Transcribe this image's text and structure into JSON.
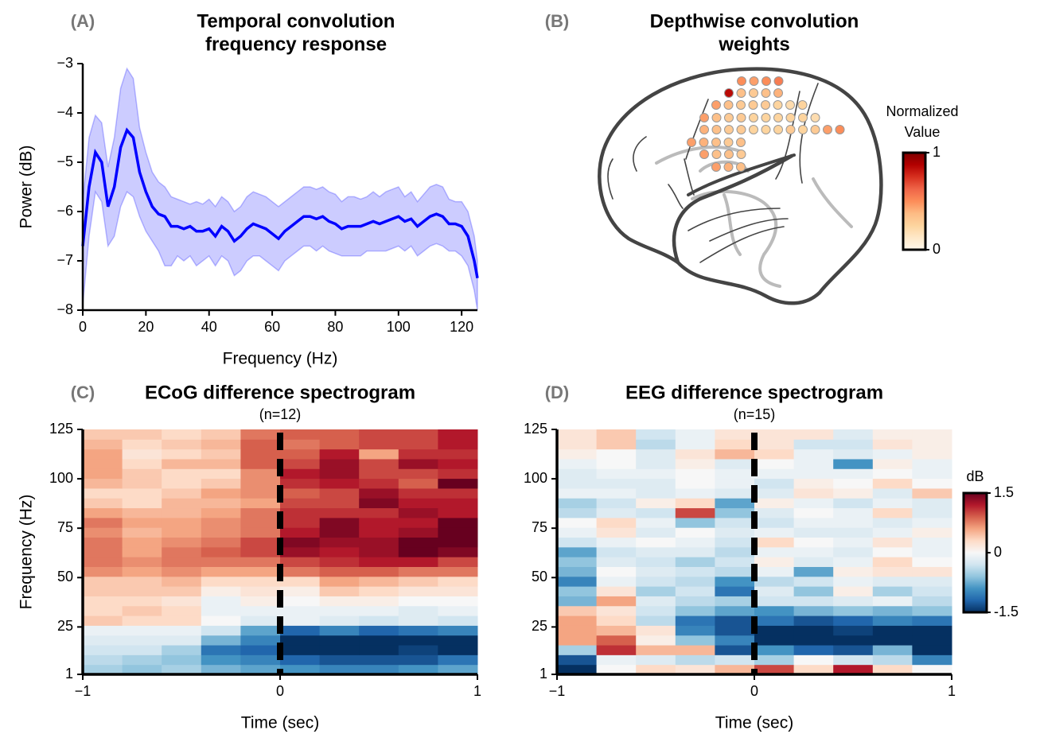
{
  "chart_data": [
    {
      "type": "line",
      "panel_label": "(A)",
      "title": [
        "Temporal convolution",
        "frequency response"
      ],
      "xlabel": "Frequency (Hz)",
      "ylabel": "Power (dB)",
      "color": "#0000ff",
      "xlim": [
        0,
        125
      ],
      "ylim": [
        -8,
        -3
      ],
      "xticks": [
        0,
        20,
        40,
        60,
        80,
        100,
        120
      ],
      "yticks": [
        {
          "value": -8,
          "label": "−8"
        },
        {
          "value": -7,
          "label": "−7"
        },
        {
          "value": -6,
          "label": "−6"
        },
        {
          "value": -5,
          "label": "−5"
        },
        {
          "value": -4,
          "label": "−4"
        },
        {
          "value": -3,
          "label": "−3"
        }
      ],
      "x": [
        0,
        2,
        4,
        6,
        8,
        10,
        12,
        14,
        16,
        18,
        20,
        22,
        24,
        26,
        28,
        30,
        32,
        34,
        36,
        38,
        40,
        42,
        44,
        46,
        48,
        50,
        52,
        54,
        56,
        58,
        60,
        62,
        64,
        66,
        68,
        70,
        72,
        74,
        76,
        78,
        80,
        82,
        84,
        86,
        88,
        90,
        92,
        94,
        96,
        98,
        100,
        102,
        104,
        106,
        108,
        110,
        112,
        114,
        116,
        118,
        120,
        122,
        124,
        125
      ],
      "values": [
        -6.7,
        -5.5,
        -4.8,
        -5.0,
        -5.9,
        -5.5,
        -4.7,
        -4.35,
        -4.5,
        -5.2,
        -5.6,
        -5.9,
        -6.05,
        -6.1,
        -6.3,
        -6.3,
        -6.35,
        -6.3,
        -6.4,
        -6.4,
        -6.35,
        -6.5,
        -6.3,
        -6.4,
        -6.6,
        -6.5,
        -6.35,
        -6.25,
        -6.3,
        -6.35,
        -6.45,
        -6.55,
        -6.4,
        -6.3,
        -6.2,
        -6.1,
        -6.1,
        -6.15,
        -6.1,
        -6.2,
        -6.25,
        -6.35,
        -6.3,
        -6.3,
        -6.3,
        -6.25,
        -6.2,
        -6.25,
        -6.2,
        -6.15,
        -6.1,
        -6.2,
        -6.15,
        -6.3,
        -6.2,
        -6.1,
        -6.05,
        -6.1,
        -6.25,
        -6.25,
        -6.3,
        -6.5,
        -7.0,
        -7.35
      ],
      "upper": [
        -5.8,
        -4.5,
        -4.05,
        -4.2,
        -5.1,
        -4.5,
        -3.5,
        -3.1,
        -3.3,
        -4.3,
        -4.8,
        -5.2,
        -5.4,
        -5.5,
        -5.7,
        -5.75,
        -5.8,
        -5.85,
        -5.8,
        -5.85,
        -5.75,
        -5.9,
        -5.7,
        -5.8,
        -6.0,
        -5.9,
        -5.7,
        -5.6,
        -5.65,
        -5.7,
        -5.8,
        -5.9,
        -5.8,
        -5.7,
        -5.6,
        -5.5,
        -5.5,
        -5.55,
        -5.5,
        -5.6,
        -5.65,
        -5.8,
        -5.7,
        -5.7,
        -5.75,
        -5.7,
        -5.6,
        -5.7,
        -5.6,
        -5.55,
        -5.5,
        -5.7,
        -5.6,
        -5.8,
        -5.65,
        -5.5,
        -5.45,
        -5.5,
        -5.75,
        -5.8,
        -5.8,
        -6.0,
        -6.5,
        -7.0
      ],
      "lower": [
        -7.9,
        -6.5,
        -5.6,
        -5.8,
        -6.7,
        -6.5,
        -5.9,
        -5.6,
        -5.7,
        -6.1,
        -6.4,
        -6.6,
        -6.8,
        -7.1,
        -7.1,
        -6.9,
        -7.0,
        -6.9,
        -7.1,
        -7.0,
        -6.9,
        -7.1,
        -6.9,
        -7.0,
        -7.3,
        -7.2,
        -7.0,
        -6.9,
        -6.9,
        -7.0,
        -7.1,
        -7.2,
        -7.0,
        -6.9,
        -6.8,
        -6.7,
        -6.7,
        -6.8,
        -6.7,
        -6.8,
        -6.85,
        -6.9,
        -6.9,
        -6.9,
        -6.9,
        -6.8,
        -6.8,
        -6.8,
        -6.8,
        -6.75,
        -6.7,
        -6.8,
        -6.7,
        -6.9,
        -6.8,
        -6.7,
        -6.65,
        -6.7,
        -6.8,
        -6.8,
        -6.9,
        -7.1,
        -7.6,
        -8.0
      ]
    },
    {
      "type": "electrode-map",
      "panel_label": "(B)",
      "title": [
        "Depthwise convolution",
        "weights"
      ],
      "colormap": "OrRd",
      "clim": [
        0,
        1
      ],
      "cticks": [
        0,
        1
      ],
      "colorbar_label": [
        "Normalized",
        "Value"
      ],
      "values": [
        [
          0.5,
          0.45,
          0.5,
          0.55
        ],
        [
          0.85,
          0.35,
          0.3,
          0.35,
          0.4
        ],
        [
          0.45,
          0.35,
          0.3,
          0.3,
          0.3,
          0.25,
          0.2,
          0.25
        ],
        [
          0.45,
          0.35,
          0.3,
          0.3,
          0.25,
          0.25,
          0.25,
          0.25,
          0.25,
          0.2
        ],
        [
          0.4,
          0.35,
          0.3,
          0.3,
          0.25,
          0.25,
          0.25,
          0.3,
          0.25,
          0.3,
          0.45,
          0.5
        ],
        [
          0.45,
          0.4,
          0.35,
          0.3,
          0.35
        ],
        [
          0.45,
          0.35,
          0.35,
          0.3
        ],
        [
          0.45,
          0.4,
          0.35
        ]
      ]
    },
    {
      "type": "heatmap",
      "panel_label": "(C)",
      "title": [
        "ECoG difference spectrogram"
      ],
      "subtitle": "(n=12)",
      "xlabel": "Time (sec)",
      "ylabel": "Frequency (Hz)",
      "colormap": "RdBu_r",
      "clim": [
        -1.5,
        1.5
      ],
      "vline": 0,
      "xlim": [
        -1,
        1
      ],
      "ylim": [
        1,
        125
      ],
      "xticks": [
        {
          "value": -1,
          "label": "−1"
        },
        0,
        1
      ],
      "yticks": [
        1,
        25,
        50,
        75,
        100,
        125
      ],
      "values": [
        [
          -0.5,
          -0.6,
          -0.5,
          -0.7,
          -0.8,
          -0.9,
          -1.0,
          -1.0,
          -0.9,
          -0.8
        ],
        [
          -0.4,
          -0.5,
          -0.6,
          -0.9,
          -1.0,
          -1.2,
          -1.3,
          -1.3,
          -1.3,
          -1.1
        ],
        [
          -0.3,
          -0.3,
          -0.5,
          -1.1,
          -1.2,
          -1.5,
          -1.5,
          -1.5,
          -1.4,
          -1.5
        ],
        [
          -0.2,
          -0.2,
          -0.2,
          -0.7,
          -1.0,
          -1.5,
          -1.5,
          -1.5,
          -1.5,
          -1.5
        ],
        [
          -0.1,
          -0.1,
          -0.1,
          -0.3,
          -0.8,
          -1.2,
          -1.0,
          -1.2,
          -1.1,
          -1.0
        ],
        [
          0.4,
          0.3,
          0.3,
          0.0,
          -0.2,
          -0.1,
          -0.2,
          -0.3,
          -0.2,
          -0.3
        ],
        [
          0.3,
          0.4,
          0.3,
          -0.1,
          -0.1,
          -0.1,
          -0.1,
          -0.1,
          -0.2,
          -0.1
        ],
        [
          0.3,
          0.3,
          0.2,
          -0.1,
          0.1,
          0.0,
          0.1,
          0.1,
          0.0,
          0.0
        ],
        [
          0.4,
          0.4,
          0.4,
          0.1,
          0.2,
          0.1,
          0.4,
          0.3,
          0.2,
          0.2
        ],
        [
          0.4,
          0.4,
          0.5,
          0.3,
          0.3,
          0.3,
          0.6,
          0.5,
          0.4,
          0.3
        ],
        [
          0.7,
          0.6,
          0.7,
          0.6,
          0.6,
          0.8,
          0.9,
          0.9,
          0.8,
          0.8
        ],
        [
          0.8,
          0.7,
          0.8,
          0.8,
          0.8,
          1.0,
          1.1,
          1.2,
          1.2,
          1.0
        ],
        [
          0.8,
          0.6,
          0.8,
          0.9,
          1.0,
          1.3,
          1.2,
          1.3,
          1.5,
          1.4
        ],
        [
          0.8,
          0.6,
          0.7,
          0.8,
          1.0,
          1.4,
          1.3,
          1.3,
          1.5,
          1.5
        ],
        [
          0.7,
          0.5,
          0.6,
          0.7,
          0.8,
          1.2,
          1.4,
          1.2,
          1.3,
          1.5
        ],
        [
          0.8,
          0.6,
          0.6,
          0.7,
          0.8,
          1.1,
          1.4,
          1.2,
          1.2,
          1.5
        ],
        [
          0.6,
          0.5,
          0.5,
          0.6,
          0.8,
          1.1,
          1.1,
          1.1,
          1.3,
          1.2
        ],
        [
          0.4,
          0.3,
          0.5,
          0.5,
          0.6,
          1.0,
          1.0,
          1.4,
          1.2,
          1.2
        ],
        [
          0.3,
          0.3,
          0.4,
          0.6,
          0.7,
          0.9,
          1.0,
          1.3,
          1.1,
          1.1
        ],
        [
          0.5,
          0.4,
          0.3,
          0.4,
          0.7,
          1.1,
          1.2,
          1.1,
          0.9,
          1.5
        ],
        [
          0.6,
          0.4,
          0.3,
          0.3,
          0.7,
          1.2,
          1.3,
          1.0,
          1.0,
          1.1
        ],
        [
          0.6,
          0.3,
          0.5,
          0.5,
          0.9,
          1.0,
          1.3,
          1.0,
          1.3,
          1.2
        ],
        [
          0.6,
          0.2,
          0.3,
          0.4,
          0.9,
          0.9,
          1.2,
          0.6,
          1.1,
          1.1
        ],
        [
          0.5,
          0.3,
          0.4,
          0.5,
          0.9,
          0.8,
          0.9,
          1.0,
          1.0,
          1.2
        ],
        [
          0.4,
          0.4,
          0.3,
          0.4,
          0.8,
          0.9,
          0.9,
          1.0,
          1.0,
          1.2
        ]
      ]
    },
    {
      "type": "heatmap",
      "panel_label": "(D)",
      "title": [
        "EEG difference spectrogram"
      ],
      "subtitle": "(n=15)",
      "xlabel": "Time (sec)",
      "colormap": "RdBu_r",
      "clim": [
        -1.5,
        1.5
      ],
      "vline": 0,
      "colorbar_label": [
        "dB"
      ],
      "cticks": [
        -1.5,
        0,
        1.5
      ],
      "xlim": [
        -1,
        1
      ],
      "ylim": [
        1,
        125
      ],
      "xticks": [
        {
          "value": -1,
          "label": "−1"
        },
        0,
        1
      ],
      "yticks": [
        1,
        25,
        50,
        75,
        100,
        125
      ],
      "values": [
        [
          -1.5,
          0.0,
          0.3,
          0.2,
          0.5,
          1.0,
          0.3,
          1.2,
          0.3,
          0.0
        ],
        [
          -1.3,
          -0.1,
          -0.2,
          -0.4,
          -0.3,
          -0.5,
          0.0,
          -0.3,
          -0.4,
          -1.0
        ],
        [
          -0.5,
          1.1,
          0.5,
          0.5,
          -1.3,
          -0.9,
          -1.2,
          -1.3,
          -0.7,
          -1.5
        ],
        [
          0.6,
          0.9,
          0.1,
          -0.6,
          -1.0,
          -1.5,
          -1.5,
          -1.5,
          -1.5,
          -1.5
        ],
        [
          0.6,
          0.5,
          0.2,
          -1.0,
          -1.3,
          -1.5,
          -1.5,
          -1.4,
          -1.5,
          -1.5
        ],
        [
          0.6,
          0.3,
          -0.4,
          -1.1,
          -1.3,
          -1.1,
          -1.3,
          -1.2,
          -1.0,
          -1.1
        ],
        [
          0.4,
          0.2,
          -0.3,
          -0.6,
          -0.8,
          -0.9,
          -0.7,
          -0.6,
          -0.7,
          -0.6
        ],
        [
          -0.7,
          0.6,
          -0.2,
          -0.4,
          -0.5,
          -0.3,
          -0.3,
          -0.2,
          -0.1,
          -0.4
        ],
        [
          -0.6,
          0.2,
          -0.5,
          -0.3,
          -1.1,
          -0.2,
          -0.6,
          0.1,
          -0.5,
          -0.3
        ],
        [
          -1.0,
          -0.1,
          -0.3,
          -0.4,
          -0.9,
          -0.4,
          -0.3,
          -0.1,
          -0.2,
          -0.2
        ],
        [
          -0.7,
          0.0,
          -0.2,
          -0.3,
          -0.4,
          -0.1,
          -0.8,
          0.1,
          0.2,
          0.2
        ],
        [
          -0.6,
          -0.2,
          -0.3,
          -0.5,
          -0.3,
          0.1,
          -0.2,
          -0.1,
          0.3,
          0.0
        ],
        [
          -0.8,
          -0.3,
          -0.2,
          -0.2,
          -0.4,
          -0.1,
          -0.1,
          -0.2,
          0.0,
          -0.1
        ],
        [
          -0.3,
          -0.1,
          0.0,
          -0.1,
          -0.3,
          0.3,
          0.0,
          -0.1,
          0.2,
          -0.1
        ],
        [
          -0.1,
          0.2,
          -0.2,
          0.0,
          -0.2,
          -0.1,
          -0.2,
          -0.2,
          -0.1,
          0.1
        ],
        [
          0.0,
          0.3,
          -0.1,
          -0.6,
          -0.3,
          -0.3,
          -0.1,
          -0.1,
          -0.2,
          -0.1
        ],
        [
          -0.4,
          -0.2,
          -0.3,
          1.0,
          -0.6,
          -0.2,
          0.0,
          -0.1,
          0.3,
          -0.2
        ],
        [
          -0.5,
          -0.3,
          0.1,
          0.3,
          -0.8,
          0.1,
          -0.1,
          -0.3,
          -0.1,
          -0.2
        ],
        [
          -0.1,
          -0.1,
          -0.2,
          -0.1,
          -0.2,
          -0.2,
          0.2,
          0.1,
          -0.2,
          0.4
        ],
        [
          -0.2,
          -0.2,
          -0.2,
          0.0,
          -0.1,
          -0.3,
          0.1,
          0.0,
          0.3,
          0.0
        ],
        [
          -0.2,
          -0.1,
          -0.1,
          0.0,
          -0.1,
          -0.1,
          -0.1,
          -0.1,
          0.0,
          -0.1
        ],
        [
          -0.1,
          0.0,
          -0.2,
          0.1,
          -0.2,
          0.0,
          -0.1,
          -0.9,
          0.1,
          -0.1
        ],
        [
          0.1,
          0.0,
          -0.2,
          0.2,
          0.5,
          0.3,
          -0.1,
          -0.2,
          -0.1,
          0.1
        ],
        [
          0.2,
          0.4,
          -0.4,
          -0.1,
          0.3,
          0.2,
          -0.3,
          -0.3,
          0.2,
          0.1
        ],
        [
          0.2,
          0.4,
          -0.3,
          -0.1,
          0.2,
          0.2,
          0.2,
          -0.2,
          0.1,
          0.1
        ]
      ]
    }
  ]
}
